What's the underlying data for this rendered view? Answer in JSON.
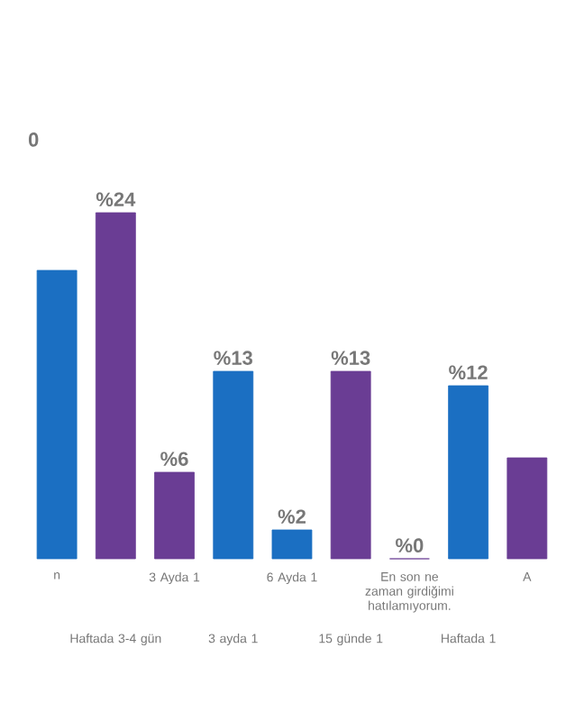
{
  "chart_data": {
    "type": "bar",
    "categories": [
      "n",
      "Haftada 3-4 gün",
      "3 Ayda 1",
      "3 ayda 1",
      "6 Ayda 1",
      "15 günde 1",
      "En son ne zaman girdiğimi hatılamıyorum.",
      "Haftada 1",
      "A"
    ],
    "values": [
      20,
      24,
      6,
      13,
      2,
      13,
      0,
      12,
      7
    ],
    "annotations": [
      "0"
    ],
    "value_labels": [
      null,
      "%24",
      "%6",
      "%13",
      "%2",
      "%13",
      "%0",
      "%12",
      null
    ],
    "colors": [
      "#1b6fc2",
      "#6a3d94",
      "#6a3d94",
      "#1b6fc2",
      "#1b6fc2",
      "#6a3d94",
      "#6a3d94",
      "#1b6fc2",
      "#6a3d94"
    ]
  }
}
